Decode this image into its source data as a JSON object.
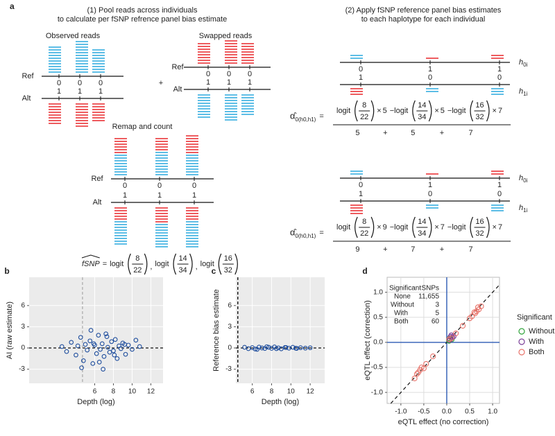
{
  "panel_label": "a",
  "diagram": {
    "step1_title": [
      "(1) Pool reads across individuals",
      "to calculate per fSNP refrence panel bias estimate"
    ],
    "step2_title": [
      "(2) Apply fSNP reference panel bias estimates",
      "to each haplotype for each individual"
    ],
    "observed_title": "Observed reads",
    "swapped_title": "Swapped reads",
    "remap_title": "Remap and count",
    "ref": "Ref",
    "alt": "Alt",
    "plus": "+",
    "allele0": "0",
    "allele1": "1",
    "h_base": "h",
    "h0_sub": "0i",
    "h1_sub": "1i",
    "fsnp": {
      "label": "fSNP",
      "eq": "=",
      "logit": "logit",
      "sep": ",",
      "terms": [
        {
          "num": 8,
          "den": 22
        },
        {
          "num": 14,
          "den": 34
        },
        {
          "num": 16,
          "den": 32
        }
      ]
    },
    "alpha": {
      "symbol": "α̂",
      "sub": "0(h0,h1)",
      "eq": "=",
      "times": "×",
      "minus": "−logit",
      "plus": "+"
    },
    "formulas": [
      {
        "weights": [
          5,
          5,
          7
        ]
      },
      {
        "weights": [
          9,
          7,
          7
        ]
      }
    ]
  },
  "chart_data": [
    {
      "type": "scatter",
      "panel_label": "b",
      "x_label": "Depth (log)",
      "y_label": "AI (raw estimate)",
      "xlim": [
        -1,
        13.3
      ],
      "ylim": [
        -5,
        10
      ],
      "xticks": [
        6,
        8,
        10,
        12
      ],
      "yticks": [
        -3,
        0,
        3,
        6
      ],
      "grid": true,
      "hline": 0,
      "vline": 4.7,
      "series": [
        {
          "color": "#1f4e9e",
          "x": [
            2.5,
            3,
            3.5,
            4,
            4.2,
            4.5,
            4.8,
            5,
            5.2,
            5.5,
            5.8,
            6,
            6.2,
            6.4,
            6.6,
            6.8,
            7,
            7.2,
            7.4,
            7.6,
            7.8,
            8,
            8.2,
            8.4,
            8.6,
            8.8,
            9,
            9.3,
            9.6,
            10,
            10.4,
            10.8,
            4.6,
            5.6,
            6.5,
            7.3,
            8.1,
            9.2,
            6.9,
            5.9
          ],
          "y": [
            0.2,
            -0.5,
            0.8,
            -1,
            0.3,
            1.5,
            -1.8,
            0.5,
            -0.3,
            1,
            -2.2,
            0.4,
            -0.8,
            1.8,
            -0.2,
            0.6,
            -1.2,
            2,
            0.1,
            -0.6,
            0.9,
            -0.4,
            1.2,
            -1.5,
            0.3,
            -0.1,
            0.7,
            -0.9,
            0.4,
            -0.2,
            1.1,
            0.2,
            -2.8,
            2.5,
            -2,
            1.6,
            -1,
            0.5,
            -3,
            0.6
          ]
        }
      ]
    },
    {
      "type": "scatter",
      "panel_label": "c",
      "x_label": "Depth (log)",
      "y_label": "Reference bias estimate",
      "xlim": [
        4.3,
        13.5
      ],
      "ylim": [
        -5,
        10
      ],
      "xticks": [
        6,
        8,
        10,
        12
      ],
      "yticks": [
        -3,
        0,
        3,
        6
      ],
      "grid": true,
      "hline": 0,
      "vline": 4.5,
      "series": [
        {
          "color": "#1f4e9e",
          "x": [
            5.2,
            5.6,
            6,
            6.3,
            6.7,
            7,
            7.3,
            7.7,
            8,
            8.3,
            8.7,
            9,
            9.4,
            9.8,
            10.2,
            10.6,
            11,
            11.5,
            12,
            6.5,
            7.5,
            8.5,
            9.5,
            10.5
          ],
          "y": [
            0.1,
            -0.1,
            0.05,
            -0.15,
            0.12,
            0,
            -0.08,
            0.1,
            -0.05,
            0.15,
            0.02,
            -0.12,
            0.08,
            -0.03,
            0.1,
            -0.06,
            0.04,
            -0.02,
            0.03,
            -0.2,
            0.18,
            -0.1,
            0.06,
            -0.04
          ]
        }
      ]
    },
    {
      "type": "scatter",
      "panel_label": "d",
      "x_label": "eQTL effect (no correction)",
      "y_label": "eQTL effect (correction)",
      "xlim": [
        -1.3,
        1.15
      ],
      "ylim": [
        -1.22,
        1.3
      ],
      "xticks": [
        {
          "value": -1,
          "label": "-1.0"
        },
        -0.5,
        {
          "value": 0,
          "label": "0.0"
        },
        0.5,
        {
          "value": 1,
          "label": "1.0"
        }
      ],
      "yticks": [
        {
          "value": -1,
          "label": "-1.0"
        },
        -0.5,
        {
          "value": 0,
          "label": "0.0"
        },
        0.5,
        {
          "value": 1,
          "label": "1.0"
        }
      ],
      "grid": true,
      "zero_lines": true,
      "diagonal": true,
      "legend_title": "Significant",
      "summary": {
        "header": [
          "Significant",
          "SNPs"
        ],
        "rows": [
          {
            "name": "None",
            "color": "#9a9a9a",
            "count": {
              "value": 11655,
              "label": "11,655"
            }
          },
          {
            "name": "Without",
            "color": "#2fa33a",
            "count": 3
          },
          {
            "name": "With",
            "color": "#7b3f98",
            "count": 5
          },
          {
            "name": "Both",
            "color": "#e8736a",
            "count": 60
          }
        ]
      },
      "series": [
        {
          "name": "Without",
          "color": "#2fa33a",
          "x": [
            0.05,
            0.06,
            0.11
          ],
          "y": [
            0.03,
            0.08,
            0.06
          ]
        },
        {
          "name": "With",
          "color": "#7b3f98",
          "x": [
            0.07,
            0.12,
            0.08,
            0.15,
            0.1
          ],
          "y": [
            0.05,
            0.1,
            0.11,
            0.12,
            0.14
          ]
        },
        {
          "name": "Both",
          "color": "#e8736a",
          "x": [
            0.62,
            0.55,
            0.7,
            0.65,
            0.5,
            0.6,
            0.68,
            -0.62,
            -0.55,
            -0.7,
            -0.5,
            -0.65,
            -0.58,
            0.75,
            -0.45,
            0.2,
            0.35,
            -0.3,
            0.05,
            0.1
          ],
          "y": [
            0.58,
            0.52,
            0.66,
            0.62,
            0.48,
            0.6,
            0.7,
            -0.6,
            -0.5,
            -0.72,
            -0.52,
            -0.63,
            -0.55,
            0.72,
            -0.43,
            0.18,
            0.33,
            -0.28,
            0.06,
            0.08
          ]
        }
      ]
    }
  ]
}
